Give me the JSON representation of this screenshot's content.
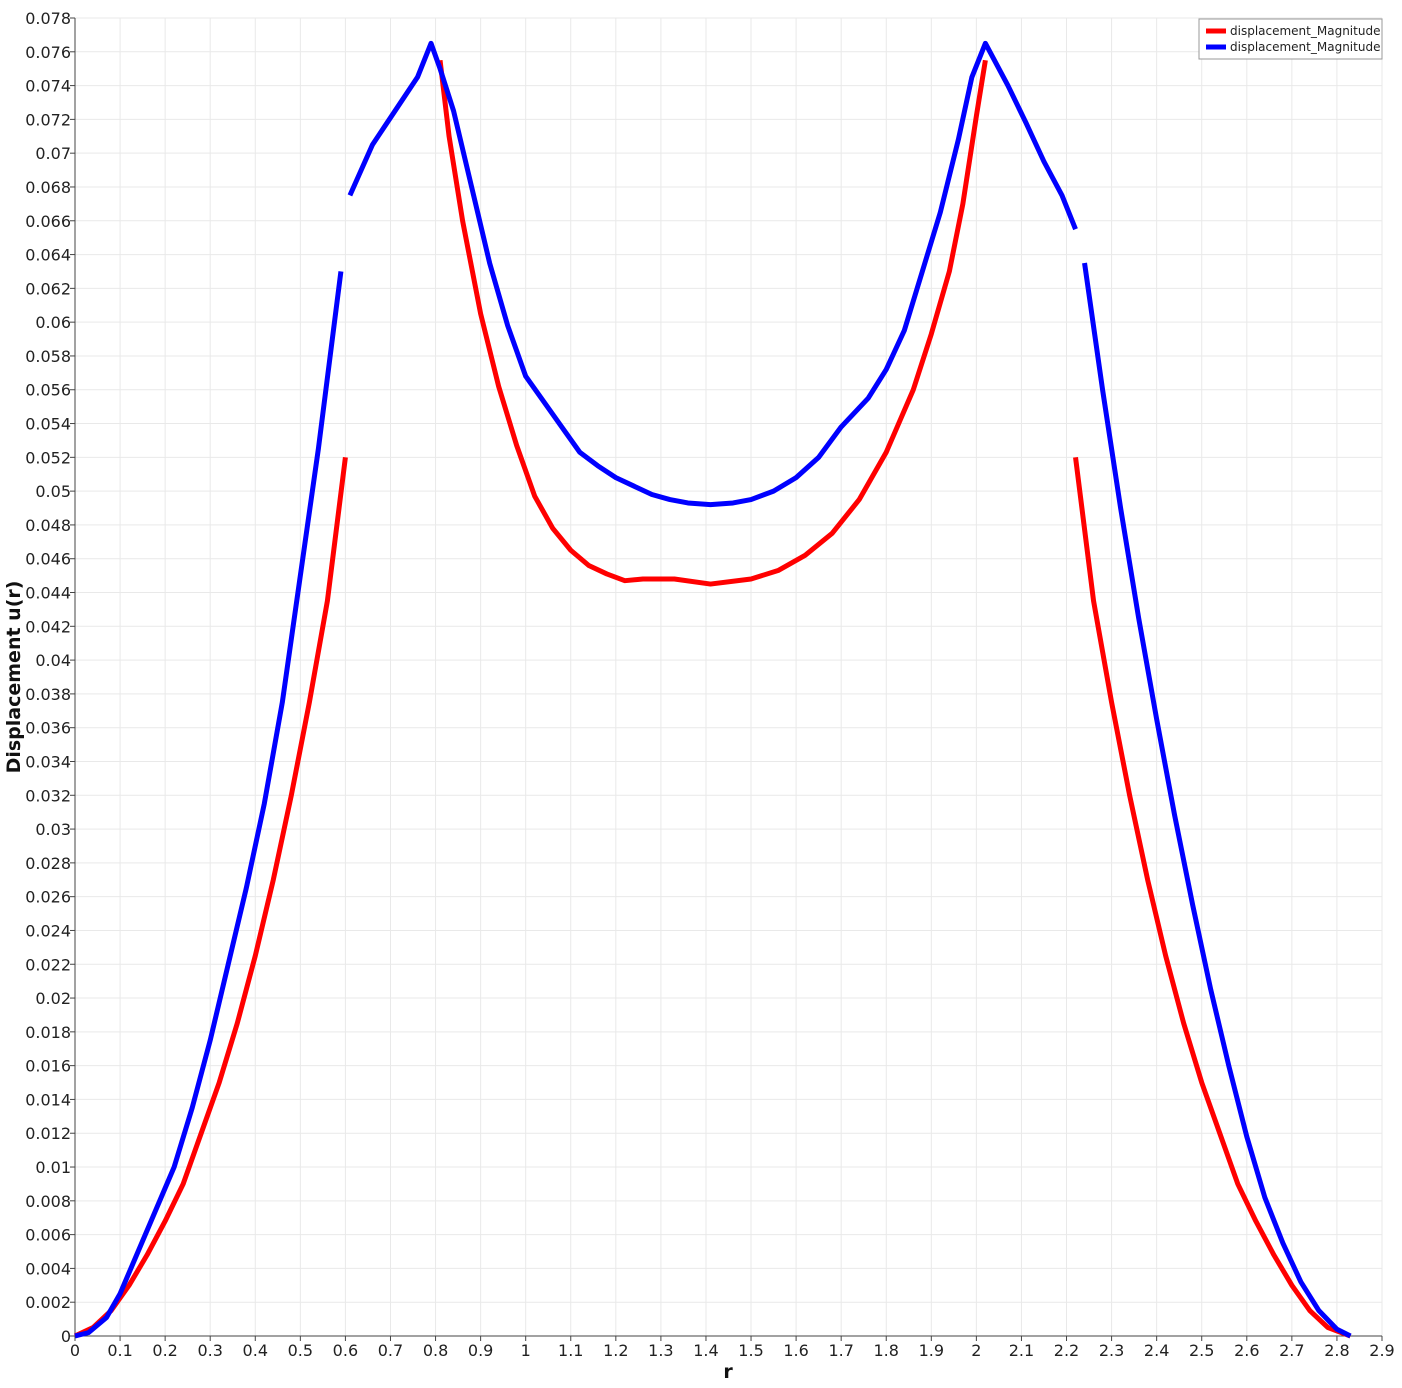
{
  "chart_data": {
    "type": "line",
    "title": "",
    "xlabel": "r",
    "ylabel": "Displacement u(r)",
    "xlim": [
      0,
      2.9
    ],
    "ylim": [
      0,
      0.078
    ],
    "grid": true,
    "legend_position": "top-right",
    "x_ticks": [
      "0",
      "0.1",
      "0.2",
      "0.3",
      "0.4",
      "0.5",
      "0.6",
      "0.7",
      "0.8",
      "0.9",
      "1",
      "1.1",
      "1.2",
      "1.3",
      "1.4",
      "1.5",
      "1.6",
      "1.7",
      "1.8",
      "1.9",
      "2",
      "2.1",
      "2.2",
      "2.3",
      "2.4",
      "2.5",
      "2.6",
      "2.7",
      "2.8",
      "2.9"
    ],
    "y_ticks": [
      "0",
      "0.002",
      "0.004",
      "0.006",
      "0.008",
      "0.01",
      "0.012",
      "0.014",
      "0.016",
      "0.018",
      "0.02",
      "0.022",
      "0.024",
      "0.026",
      "0.028",
      "0.03",
      "0.032",
      "0.034",
      "0.036",
      "0.038",
      "0.04",
      "0.042",
      "0.044",
      "0.046",
      "0.048",
      "0.05",
      "0.052",
      "0.054",
      "0.056",
      "0.058",
      "0.06",
      "0.062",
      "0.064",
      "0.066",
      "0.068",
      "0.07",
      "0.072",
      "0.074",
      "0.076",
      "0.078"
    ],
    "series": [
      {
        "name": "displacement_Magnitude",
        "color": "#ff0000",
        "segments": [
          [
            [
              0,
              0
            ],
            [
              0.04,
              0.0005
            ],
            [
              0.08,
              0.0015
            ],
            [
              0.12,
              0.003
            ],
            [
              0.16,
              0.0048
            ],
            [
              0.2,
              0.0068
            ],
            [
              0.24,
              0.009
            ],
            [
              0.28,
              0.012
            ],
            [
              0.32,
              0.015
            ],
            [
              0.36,
              0.0185
            ],
            [
              0.4,
              0.0225
            ],
            [
              0.44,
              0.027
            ],
            [
              0.48,
              0.032
            ],
            [
              0.52,
              0.0375
            ],
            [
              0.56,
              0.0435
            ],
            [
              0.6,
              0.052
            ]
          ],
          [
            [
              0.81,
              0.0755
            ],
            [
              0.83,
              0.071
            ],
            [
              0.86,
              0.066
            ],
            [
              0.9,
              0.0605
            ],
            [
              0.94,
              0.0562
            ],
            [
              0.98,
              0.0527
            ],
            [
              1.02,
              0.0497
            ],
            [
              1.06,
              0.0478
            ],
            [
              1.1,
              0.0465
            ],
            [
              1.14,
              0.0456
            ],
            [
              1.18,
              0.0451
            ],
            [
              1.22,
              0.0447
            ],
            [
              1.26,
              0.0448
            ],
            [
              1.3,
              0.0448
            ],
            [
              1.33,
              0.0448
            ],
            [
              1.41,
              0.0445
            ],
            [
              1.5,
              0.0448
            ],
            [
              1.56,
              0.0453
            ],
            [
              1.62,
              0.0462
            ],
            [
              1.68,
              0.0475
            ],
            [
              1.74,
              0.0495
            ],
            [
              1.8,
              0.0523
            ],
            [
              1.86,
              0.056
            ],
            [
              1.9,
              0.0593
            ],
            [
              1.94,
              0.063
            ],
            [
              1.97,
              0.067
            ],
            [
              2,
              0.0722
            ],
            [
              2.02,
              0.0755
            ]
          ],
          [
            [
              2.22,
              0.052
            ],
            [
              2.26,
              0.0435
            ],
            [
              2.3,
              0.0375
            ],
            [
              2.34,
              0.032
            ],
            [
              2.38,
              0.027
            ],
            [
              2.42,
              0.0225
            ],
            [
              2.46,
              0.0185
            ],
            [
              2.5,
              0.015
            ],
            [
              2.54,
              0.012
            ],
            [
              2.58,
              0.009
            ],
            [
              2.62,
              0.0068
            ],
            [
              2.66,
              0.0048
            ],
            [
              2.7,
              0.003
            ],
            [
              2.74,
              0.0015
            ],
            [
              2.78,
              0.0005
            ],
            [
              2.83,
              0
            ]
          ]
        ]
      },
      {
        "name": "displacement_Magnitude",
        "color": "#0000ff",
        "segments": [
          [
            [
              0,
              0
            ],
            [
              0.03,
              0.0002
            ],
            [
              0.07,
              0.0011
            ],
            [
              0.1,
              0.0025
            ],
            [
              0.14,
              0.005
            ],
            [
              0.18,
              0.0075
            ],
            [
              0.22,
              0.01
            ],
            [
              0.26,
              0.0135
            ],
            [
              0.3,
              0.0175
            ],
            [
              0.34,
              0.022
            ],
            [
              0.38,
              0.0265
            ],
            [
              0.42,
              0.0315
            ],
            [
              0.46,
              0.0375
            ],
            [
              0.5,
              0.045
            ],
            [
              0.54,
              0.0525
            ],
            [
              0.59,
              0.063
            ]
          ],
          [
            [
              0.61,
              0.0675
            ],
            [
              0.66,
              0.0705
            ],
            [
              0.71,
              0.0725
            ],
            [
              0.76,
              0.0745
            ],
            [
              0.79,
              0.0765
            ],
            [
              0.81,
              0.075
            ],
            [
              0.84,
              0.0725
            ],
            [
              0.88,
              0.068
            ],
            [
              0.92,
              0.0635
            ],
            [
              0.96,
              0.0598
            ],
            [
              1,
              0.0568
            ],
            [
              1.04,
              0.0553
            ],
            [
              1.08,
              0.0538
            ],
            [
              1.12,
              0.0523
            ],
            [
              1.16,
              0.0515
            ],
            [
              1.2,
              0.0508
            ],
            [
              1.24,
              0.0503
            ],
            [
              1.28,
              0.0498
            ],
            [
              1.32,
              0.0495
            ],
            [
              1.36,
              0.0493
            ],
            [
              1.41,
              0.0492
            ],
            [
              1.46,
              0.0493
            ],
            [
              1.5,
              0.0495
            ],
            [
              1.55,
              0.05
            ],
            [
              1.6,
              0.0508
            ],
            [
              1.65,
              0.052
            ],
            [
              1.7,
              0.0538
            ],
            [
              1.76,
              0.0555
            ],
            [
              1.8,
              0.0572
            ],
            [
              1.84,
              0.0595
            ],
            [
              1.88,
              0.063
            ],
            [
              1.92,
              0.0665
            ],
            [
              1.96,
              0.0708
            ],
            [
              1.99,
              0.0745
            ],
            [
              2.02,
              0.0765
            ],
            [
              2.07,
              0.074
            ],
            [
              2.11,
              0.0718
            ],
            [
              2.15,
              0.0695
            ],
            [
              2.19,
              0.0675
            ],
            [
              2.22,
              0.0655
            ]
          ],
          [
            [
              2.24,
              0.0635
            ],
            [
              2.28,
              0.056
            ],
            [
              2.32,
              0.049
            ],
            [
              2.36,
              0.0425
            ],
            [
              2.4,
              0.0365
            ],
            [
              2.44,
              0.0308
            ],
            [
              2.48,
              0.0255
            ],
            [
              2.52,
              0.0205
            ],
            [
              2.56,
              0.016
            ],
            [
              2.6,
              0.0118
            ],
            [
              2.64,
              0.0082
            ],
            [
              2.68,
              0.0055
            ],
            [
              2.72,
              0.0032
            ],
            [
              2.76,
              0.0015
            ],
            [
              2.8,
              0.0004
            ],
            [
              2.83,
              0
            ]
          ]
        ]
      }
    ]
  }
}
